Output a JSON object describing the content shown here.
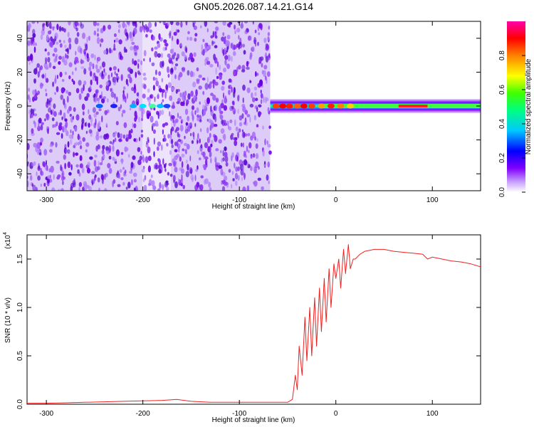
{
  "title": "GN05.2026.087.14.21.G14",
  "spectrogram": {
    "xlabel": "Height of straight line (km)",
    "ylabel": "Frequency (Hz)",
    "xlim": [
      -320,
      150
    ],
    "ylim": [
      -50,
      50
    ],
    "xticks": [
      "-300",
      "-200",
      "-100",
      "0",
      "100"
    ],
    "xtick_values": [
      -300,
      -200,
      -100,
      0,
      100
    ],
    "yticks": [
      "-40",
      "-20",
      "0",
      "20",
      "40"
    ],
    "ytick_values": [
      -40,
      -20,
      0,
      20,
      40
    ],
    "data_cutoff_x": -68
  },
  "colorbar": {
    "label": "Normalized spectral amplitude",
    "ticks": [
      "0.0",
      "0.2",
      "0.4",
      "0.6",
      "0.8"
    ],
    "tick_values": [
      0,
      0.2,
      0.4,
      0.6,
      0.8
    ],
    "range": [
      0,
      1
    ],
    "colors": [
      "#ffffff",
      "#8000ff",
      "#0000ff",
      "#00ffff",
      "#00ff00",
      "#ffff00",
      "#ff8000",
      "#ff0000",
      "#ff00aa"
    ]
  },
  "chart_data": {
    "type": "line",
    "title": "",
    "xlabel": "Height of straight line (km)",
    "ylabel": "SNR (10 * v/v)",
    "y_multiplier": "(x10",
    "y_multiplier_exp": "4",
    "xlim": [
      -320,
      150
    ],
    "ylim": [
      0,
      1.75
    ],
    "xticks": [
      "-300",
      "-200",
      "-100",
      "0",
      "100"
    ],
    "xtick_values": [
      -300,
      -200,
      -100,
      0,
      100
    ],
    "yticks": [
      "0.0",
      "0.5",
      "1.0",
      "1.5"
    ],
    "ytick_values": [
      0,
      0.5,
      1.0,
      1.5
    ],
    "color": "#ee2222",
    "series": [
      {
        "x": [
          -320,
          -300,
          -280,
          -260,
          -240,
          -220,
          -200,
          -180,
          -165,
          -150,
          -130,
          -110,
          -90,
          -70,
          -50,
          -45,
          -42,
          -40,
          -38,
          -35,
          -32,
          -30,
          -27,
          -25,
          -22,
          -20,
          -17,
          -15,
          -12,
          -10,
          -7,
          -5,
          -2,
          0,
          3,
          5,
          8,
          10,
          13,
          15,
          18,
          20,
          25,
          30,
          40,
          50,
          60,
          70,
          80,
          90,
          95,
          100,
          110,
          120,
          130,
          140,
          150
        ],
        "y": [
          0.01,
          0.01,
          0.015,
          0.02,
          0.025,
          0.03,
          0.035,
          0.04,
          0.05,
          0.03,
          0.02,
          0.02,
          0.02,
          0.02,
          0.02,
          0.05,
          0.3,
          0.15,
          0.6,
          0.3,
          0.9,
          0.45,
          1.0,
          0.5,
          1.1,
          0.6,
          1.2,
          0.75,
          1.3,
          0.85,
          1.4,
          1.0,
          1.45,
          1.3,
          1.5,
          1.2,
          1.6,
          1.35,
          1.65,
          1.4,
          1.5,
          1.5,
          1.55,
          1.58,
          1.6,
          1.6,
          1.58,
          1.57,
          1.56,
          1.55,
          1.5,
          1.52,
          1.5,
          1.48,
          1.47,
          1.45,
          1.42
        ]
      }
    ]
  }
}
